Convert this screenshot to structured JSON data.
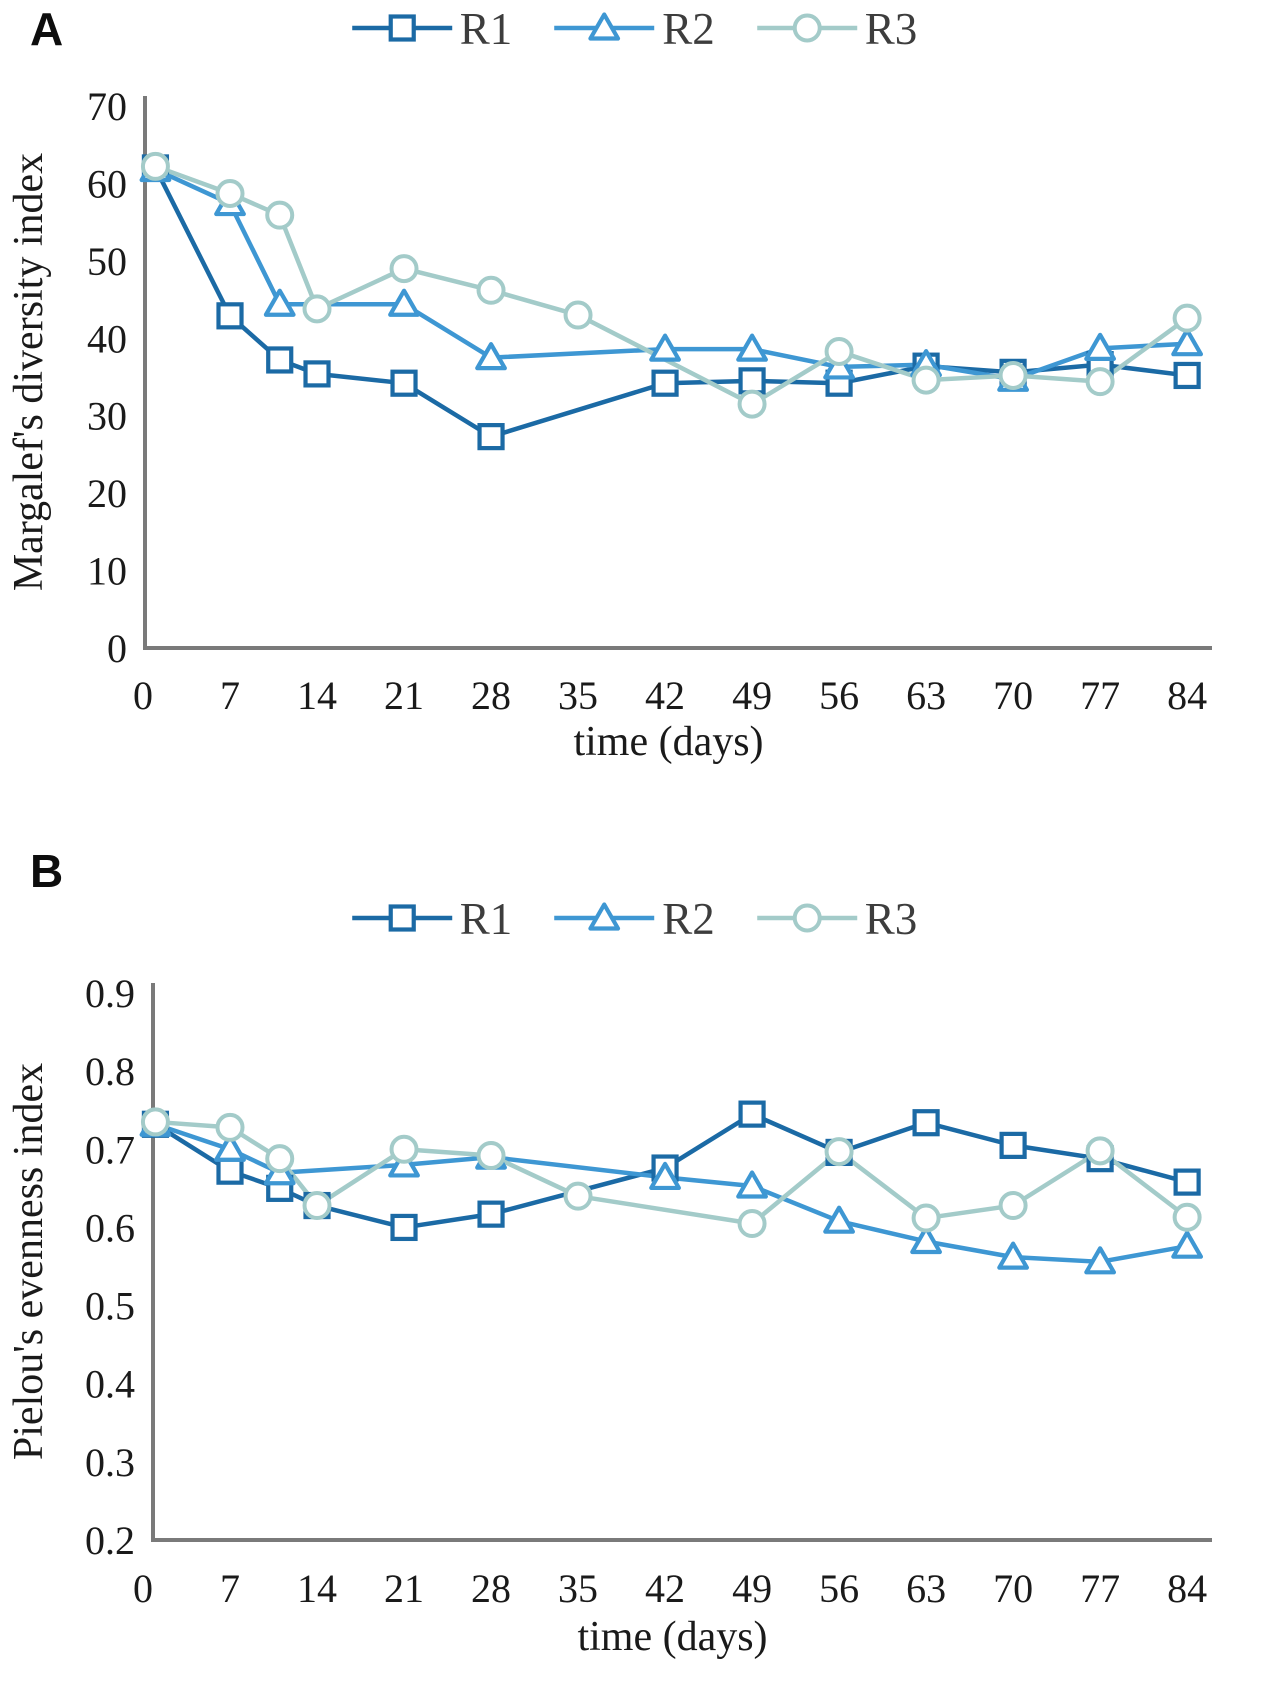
{
  "figure_text": {
    "panel_a_letter": "A",
    "panel_b_letter": "B",
    "x_axis_title": "time (days)",
    "panel_a_y_axis_title": "Margalef's diversity index",
    "panel_b_y_axis_title": "Pielou's evenness index"
  },
  "colors": {
    "r1": "#1b6aa5",
    "r2": "#3e97d3",
    "r3": "#a3cbc9",
    "axis": "#7a7a7a",
    "tick_text": "#1a1a1a",
    "legend_text": "#3d3d3d"
  },
  "chart_data": [
    {
      "type": "line",
      "panel_label": "A",
      "xlabel": "time (days)",
      "ylabel": "Margalef's diversity index",
      "xlim": [
        0,
        84
      ],
      "ylim": [
        0,
        70
      ],
      "xticks": [
        "0",
        "7",
        "14",
        "21",
        "28",
        "35",
        "42",
        "49",
        "56",
        "63",
        "70",
        "77",
        "84"
      ],
      "yticks": [
        "0",
        "10",
        "20",
        "30",
        "40",
        "50",
        "60",
        "70"
      ],
      "grid": false,
      "legend_position": "top-center",
      "series": [
        {
          "name": "R1",
          "marker": "square",
          "color": "#1b6aa5",
          "x": [
            1,
            7,
            11,
            14,
            21,
            28,
            42,
            49,
            56,
            63,
            70,
            77,
            84
          ],
          "y": [
            62.0,
            42.9,
            37.2,
            35.4,
            34.2,
            27.3,
            34.2,
            34.5,
            34.2,
            36.4,
            35.6,
            36.6,
            35.2
          ]
        },
        {
          "name": "R2",
          "marker": "triangle",
          "color": "#3e97d3",
          "x": [
            1,
            7,
            11,
            21,
            28,
            42,
            49,
            56,
            63,
            70,
            77,
            84
          ],
          "y": [
            61.8,
            57.4,
            44.4,
            44.4,
            37.5,
            38.6,
            38.6,
            36.3,
            36.6,
            34.7,
            38.7,
            39.3
          ]
        },
        {
          "name": "R3",
          "marker": "circle",
          "color": "#a3cbc9",
          "x": [
            1,
            7,
            11,
            14,
            21,
            28,
            35,
            49,
            56,
            63,
            70,
            77,
            84
          ],
          "y": [
            62.2,
            58.7,
            55.9,
            43.8,
            49.0,
            46.2,
            43.0,
            31.5,
            38.3,
            34.6,
            35.2,
            34.4,
            42.6
          ]
        }
      ]
    },
    {
      "type": "line",
      "panel_label": "B",
      "xlabel": "time (days)",
      "ylabel": "Pielou's evenness index",
      "xlim": [
        0,
        84
      ],
      "ylim": [
        0.2,
        0.9
      ],
      "xticks": [
        "0",
        "7",
        "14",
        "21",
        "28",
        "35",
        "42",
        "49",
        "56",
        "63",
        "70",
        "77",
        "84"
      ],
      "yticks": [
        "0.2",
        "0.3",
        "0.4",
        "0.5",
        "0.6",
        "0.7",
        "0.8",
        "0.9"
      ],
      "grid": false,
      "legend_position": "top-center",
      "series": [
        {
          "name": "R1",
          "marker": "square",
          "color": "#1b6aa5",
          "x": [
            1,
            7,
            11,
            14,
            21,
            28,
            42,
            49,
            56,
            63,
            70,
            77,
            84
          ],
          "y": [
            0.732,
            0.672,
            0.65,
            0.628,
            0.6,
            0.617,
            0.676,
            0.745,
            0.696,
            0.734,
            0.705,
            0.688,
            0.658
          ]
        },
        {
          "name": "R2",
          "marker": "triangle",
          "color": "#3e97d3",
          "x": [
            1,
            7,
            11,
            21,
            28,
            42,
            49,
            56,
            63,
            70,
            77,
            84
          ],
          "y": [
            0.732,
            0.7,
            0.67,
            0.68,
            0.69,
            0.664,
            0.653,
            0.608,
            0.582,
            0.562,
            0.556,
            0.576
          ]
        },
        {
          "name": "R3",
          "marker": "circle",
          "color": "#a3cbc9",
          "x": [
            1,
            7,
            11,
            14,
            21,
            28,
            35,
            49,
            56,
            63,
            70,
            77,
            84
          ],
          "y": [
            0.735,
            0.728,
            0.688,
            0.628,
            0.7,
            0.692,
            0.64,
            0.605,
            0.697,
            0.612,
            0.628,
            0.698,
            0.613
          ]
        }
      ]
    }
  ]
}
